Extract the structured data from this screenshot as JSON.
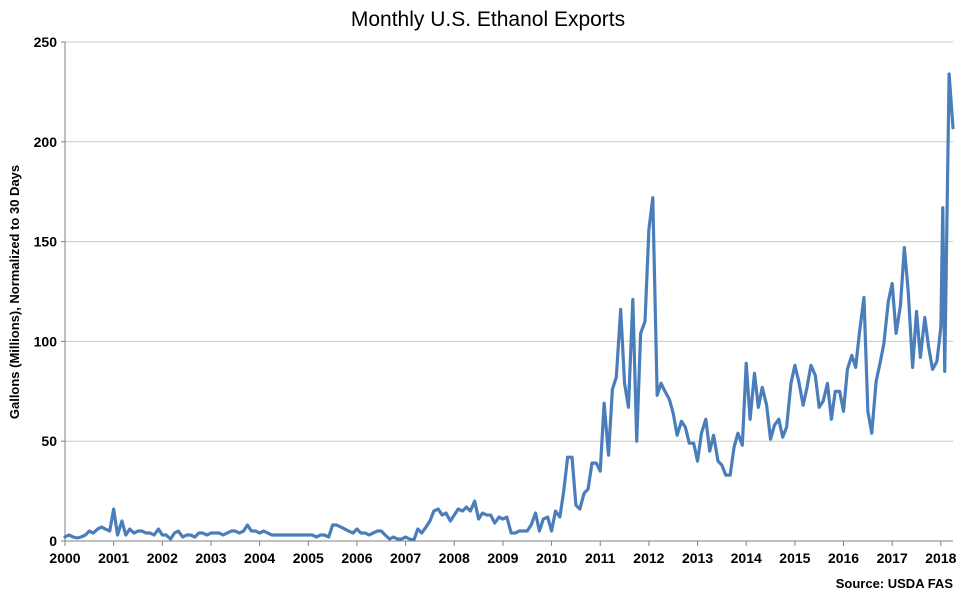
{
  "chart_data": {
    "type": "line",
    "title": "Monthly U.S. Ethanol Exports",
    "xlabel": "",
    "ylabel": "Gallons (Millions), Normalized to 30 Days",
    "source": "Source: USDA FAS",
    "xlim": [
      2000,
      2018.25
    ],
    "ylim": [
      0,
      250
    ],
    "yticks": [
      0,
      50,
      100,
      150,
      200,
      250
    ],
    "xticks": [
      2000,
      2001,
      2002,
      2003,
      2004,
      2005,
      2006,
      2007,
      2008,
      2009,
      2010,
      2011,
      2012,
      2013,
      2014,
      2015,
      2016,
      2017,
      2018
    ],
    "grid": "horizontal",
    "line_color": "#4a7ebb",
    "series": [
      {
        "name": "",
        "points": [
          [
            2000.0,
            2
          ],
          [
            2000.08,
            3
          ],
          [
            2000.17,
            2
          ],
          [
            2000.25,
            1.5
          ],
          [
            2000.33,
            2
          ],
          [
            2000.42,
            3
          ],
          [
            2000.5,
            5
          ],
          [
            2000.58,
            4
          ],
          [
            2000.67,
            6
          ],
          [
            2000.75,
            7
          ],
          [
            2000.83,
            6
          ],
          [
            2000.92,
            5
          ],
          [
            2001.0,
            16
          ],
          [
            2001.08,
            3
          ],
          [
            2001.17,
            10
          ],
          [
            2001.25,
            3
          ],
          [
            2001.33,
            6
          ],
          [
            2001.42,
            4
          ],
          [
            2001.5,
            5
          ],
          [
            2001.58,
            5
          ],
          [
            2001.67,
            4
          ],
          [
            2001.75,
            4
          ],
          [
            2001.83,
            3
          ],
          [
            2001.92,
            6
          ],
          [
            2002.0,
            3
          ],
          [
            2002.08,
            3
          ],
          [
            2002.17,
            1
          ],
          [
            2002.25,
            4
          ],
          [
            2002.33,
            5
          ],
          [
            2002.42,
            2
          ],
          [
            2002.5,
            3
          ],
          [
            2002.58,
            3
          ],
          [
            2002.67,
            2
          ],
          [
            2002.75,
            4
          ],
          [
            2002.83,
            4
          ],
          [
            2002.92,
            3
          ],
          [
            2003.0,
            4
          ],
          [
            2003.08,
            4
          ],
          [
            2003.17,
            4
          ],
          [
            2003.25,
            3
          ],
          [
            2003.33,
            4
          ],
          [
            2003.42,
            5
          ],
          [
            2003.5,
            5
          ],
          [
            2003.58,
            4
          ],
          [
            2003.67,
            5
          ],
          [
            2003.75,
            8
          ],
          [
            2003.83,
            5
          ],
          [
            2003.92,
            5
          ],
          [
            2004.0,
            4
          ],
          [
            2004.08,
            5
          ],
          [
            2004.17,
            4
          ],
          [
            2004.25,
            3
          ],
          [
            2004.33,
            3
          ],
          [
            2004.42,
            3
          ],
          [
            2004.5,
            3
          ],
          [
            2004.58,
            3
          ],
          [
            2004.67,
            3
          ],
          [
            2004.75,
            3
          ],
          [
            2004.83,
            3
          ],
          [
            2004.92,
            3
          ],
          [
            2005.0,
            3
          ],
          [
            2005.08,
            3
          ],
          [
            2005.17,
            2
          ],
          [
            2005.25,
            3
          ],
          [
            2005.33,
            3
          ],
          [
            2005.42,
            2
          ],
          [
            2005.5,
            8
          ],
          [
            2005.58,
            8
          ],
          [
            2005.67,
            7
          ],
          [
            2005.75,
            6
          ],
          [
            2005.83,
            5
          ],
          [
            2005.92,
            4
          ],
          [
            2006.0,
            6
          ],
          [
            2006.08,
            4
          ],
          [
            2006.17,
            4
          ],
          [
            2006.25,
            3
          ],
          [
            2006.33,
            4
          ],
          [
            2006.42,
            5
          ],
          [
            2006.5,
            5
          ],
          [
            2006.58,
            3
          ],
          [
            2006.67,
            1
          ],
          [
            2006.75,
            2
          ],
          [
            2006.83,
            1
          ],
          [
            2006.92,
            1
          ],
          [
            2007.0,
            2
          ],
          [
            2007.08,
            1
          ],
          [
            2007.17,
            0.5
          ],
          [
            2007.25,
            6
          ],
          [
            2007.33,
            4
          ],
          [
            2007.42,
            7
          ],
          [
            2007.5,
            10
          ],
          [
            2007.58,
            15
          ],
          [
            2007.67,
            16
          ],
          [
            2007.75,
            13
          ],
          [
            2007.83,
            14
          ],
          [
            2007.92,
            10
          ],
          [
            2008.0,
            13
          ],
          [
            2008.08,
            16
          ],
          [
            2008.17,
            15
          ],
          [
            2008.25,
            17
          ],
          [
            2008.33,
            15
          ],
          [
            2008.42,
            20
          ],
          [
            2008.5,
            11
          ],
          [
            2008.58,
            14
          ],
          [
            2008.67,
            13
          ],
          [
            2008.75,
            13
          ],
          [
            2008.83,
            9
          ],
          [
            2008.92,
            12
          ],
          [
            2009.0,
            11
          ],
          [
            2009.08,
            12
          ],
          [
            2009.17,
            4
          ],
          [
            2009.25,
            4
          ],
          [
            2009.33,
            5
          ],
          [
            2009.42,
            5
          ],
          [
            2009.5,
            5
          ],
          [
            2009.58,
            8
          ],
          [
            2009.67,
            14
          ],
          [
            2009.75,
            5
          ],
          [
            2009.83,
            11
          ],
          [
            2009.92,
            12
          ],
          [
            2010.0,
            5
          ],
          [
            2010.08,
            15
          ],
          [
            2010.17,
            12
          ],
          [
            2010.25,
            25
          ],
          [
            2010.33,
            42
          ],
          [
            2010.42,
            42
          ],
          [
            2010.5,
            18
          ],
          [
            2010.58,
            16
          ],
          [
            2010.67,
            24
          ],
          [
            2010.75,
            26
          ],
          [
            2010.83,
            39
          ],
          [
            2010.92,
            39
          ],
          [
            2011.0,
            35
          ],
          [
            2011.08,
            69
          ],
          [
            2011.17,
            43
          ],
          [
            2011.25,
            76
          ],
          [
            2011.33,
            82
          ],
          [
            2011.42,
            116
          ],
          [
            2011.5,
            79
          ],
          [
            2011.58,
            67
          ],
          [
            2011.67,
            121
          ],
          [
            2011.75,
            50
          ],
          [
            2011.83,
            104
          ],
          [
            2011.92,
            110
          ],
          [
            2012.0,
            156
          ],
          [
            2012.08,
            172
          ],
          [
            2012.17,
            73
          ],
          [
            2012.25,
            79
          ],
          [
            2012.33,
            75
          ],
          [
            2012.42,
            71
          ],
          [
            2012.5,
            64
          ],
          [
            2012.58,
            53
          ],
          [
            2012.67,
            60
          ],
          [
            2012.75,
            57
          ],
          [
            2012.83,
            49
          ],
          [
            2012.92,
            49
          ],
          [
            2013.0,
            40
          ],
          [
            2013.08,
            54
          ],
          [
            2013.17,
            61
          ],
          [
            2013.25,
            45
          ],
          [
            2013.33,
            53
          ],
          [
            2013.42,
            40
          ],
          [
            2013.5,
            38
          ],
          [
            2013.58,
            33
          ],
          [
            2013.67,
            33
          ],
          [
            2013.75,
            47
          ],
          [
            2013.83,
            54
          ],
          [
            2013.92,
            48
          ],
          [
            2014.0,
            89
          ],
          [
            2014.08,
            61
          ],
          [
            2014.17,
            84
          ],
          [
            2014.25,
            67
          ],
          [
            2014.33,
            77
          ],
          [
            2014.42,
            68
          ],
          [
            2014.5,
            51
          ],
          [
            2014.58,
            58
          ],
          [
            2014.67,
            61
          ],
          [
            2014.75,
            52
          ],
          [
            2014.83,
            57
          ],
          [
            2014.92,
            79
          ],
          [
            2015.0,
            88
          ],
          [
            2015.08,
            80
          ],
          [
            2015.17,
            68
          ],
          [
            2015.25,
            77
          ],
          [
            2015.33,
            88
          ],
          [
            2015.42,
            83
          ],
          [
            2015.5,
            67
          ],
          [
            2015.58,
            70
          ],
          [
            2015.67,
            79
          ],
          [
            2015.75,
            61
          ],
          [
            2015.83,
            75
          ],
          [
            2015.92,
            75
          ],
          [
            2016.0,
            65
          ],
          [
            2016.08,
            86
          ],
          [
            2016.17,
            93
          ],
          [
            2016.25,
            87
          ],
          [
            2016.33,
            105
          ],
          [
            2016.42,
            122
          ],
          [
            2016.5,
            65
          ],
          [
            2016.58,
            54
          ],
          [
            2016.67,
            80
          ],
          [
            2016.75,
            89
          ],
          [
            2016.83,
            99
          ],
          [
            2016.92,
            120
          ],
          [
            2017.0,
            129
          ],
          [
            2017.08,
            104
          ],
          [
            2017.17,
            118
          ],
          [
            2017.25,
            147
          ],
          [
            2017.33,
            125
          ],
          [
            2017.42,
            87
          ],
          [
            2017.5,
            115
          ],
          [
            2017.58,
            92
          ],
          [
            2017.67,
            112
          ],
          [
            2017.75,
            97
          ],
          [
            2017.83,
            86
          ],
          [
            2017.92,
            90
          ],
          [
            2018.0,
            107
          ],
          [
            2018.04,
            167
          ],
          [
            2018.08,
            85
          ],
          [
            2018.17,
            234
          ],
          [
            2018.25,
            207
          ]
        ]
      }
    ]
  }
}
